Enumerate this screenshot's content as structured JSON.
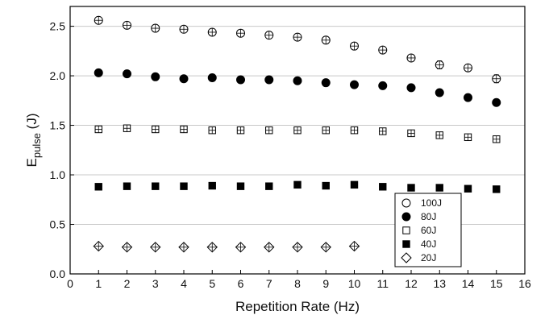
{
  "chart_data": {
    "type": "scatter",
    "title": "",
    "xlabel": "Repetition Rate (Hz)",
    "ylabel_main": "E",
    "ylabel_sub": "pulse",
    "ylabel_unit": " (J)",
    "xlim": [
      0,
      16
    ],
    "ylim": [
      0.0,
      2.7
    ],
    "xticks": [
      "0",
      "1",
      "2",
      "3",
      "4",
      "5",
      "6",
      "7",
      "8",
      "9",
      "10",
      "11",
      "12",
      "13",
      "14",
      "15",
      "16"
    ],
    "yticks": [
      "0.0",
      "0.5",
      "1.0",
      "1.5",
      "2.0",
      "2.5"
    ],
    "grid": "horizontal",
    "legend_position": "bottom-right",
    "series": [
      {
        "name": "100J",
        "marker": "open-circle",
        "x": [
          1,
          2,
          3,
          4,
          5,
          6,
          7,
          8,
          9,
          10,
          11,
          12,
          13,
          14,
          15
        ],
        "y": [
          2.56,
          2.51,
          2.48,
          2.47,
          2.44,
          2.43,
          2.41,
          2.39,
          2.36,
          2.3,
          2.26,
          2.18,
          2.11,
          2.08,
          1.97
        ],
        "err": [
          0.02,
          0.02,
          0.02,
          0.02,
          0.02,
          0.02,
          0.02,
          0.02,
          0.02,
          0.02,
          0.02,
          0.03,
          0.04,
          0.03,
          0.04
        ]
      },
      {
        "name": "80J",
        "marker": "filled-circle",
        "x": [
          1,
          2,
          3,
          4,
          5,
          6,
          7,
          8,
          9,
          10,
          11,
          12,
          13,
          14,
          15
        ],
        "y": [
          2.03,
          2.02,
          1.99,
          1.97,
          1.98,
          1.96,
          1.96,
          1.95,
          1.93,
          1.91,
          1.9,
          1.88,
          1.83,
          1.78,
          1.73
        ],
        "err": [
          0.01,
          0.01,
          0.01,
          0.01,
          0.01,
          0.01,
          0.01,
          0.01,
          0.01,
          0.01,
          0.01,
          0.01,
          0.01,
          0.01,
          0.03
        ]
      },
      {
        "name": "60J",
        "marker": "open-square",
        "x": [
          1,
          2,
          3,
          4,
          5,
          6,
          7,
          8,
          9,
          10,
          11,
          12,
          13,
          14,
          15
        ],
        "y": [
          1.46,
          1.47,
          1.46,
          1.46,
          1.45,
          1.45,
          1.45,
          1.45,
          1.45,
          1.45,
          1.44,
          1.42,
          1.4,
          1.38,
          1.36
        ],
        "err": [
          0.02,
          0.02,
          0.02,
          0.02,
          0.02,
          0.02,
          0.02,
          0.02,
          0.02,
          0.02,
          0.02,
          0.02,
          0.02,
          0.02,
          0.02
        ]
      },
      {
        "name": "40J",
        "marker": "filled-square",
        "x": [
          1,
          2,
          3,
          4,
          5,
          6,
          7,
          8,
          9,
          10,
          11,
          12,
          13,
          14,
          15
        ],
        "y": [
          0.88,
          0.885,
          0.885,
          0.885,
          0.89,
          0.885,
          0.885,
          0.9,
          0.89,
          0.9,
          0.88,
          0.87,
          0.87,
          0.86,
          0.855
        ],
        "err": [
          0,
          0,
          0,
          0,
          0,
          0,
          0,
          0,
          0,
          0,
          0,
          0,
          0,
          0,
          0
        ]
      },
      {
        "name": "20J",
        "marker": "open-diamond",
        "x": [
          1,
          2,
          3,
          4,
          5,
          6,
          7,
          8,
          9,
          10
        ],
        "y": [
          0.28,
          0.27,
          0.27,
          0.27,
          0.27,
          0.27,
          0.27,
          0.27,
          0.27,
          0.28
        ],
        "err": [
          0,
          0,
          0,
          0,
          0,
          0,
          0,
          0,
          0,
          0
        ]
      }
    ]
  }
}
